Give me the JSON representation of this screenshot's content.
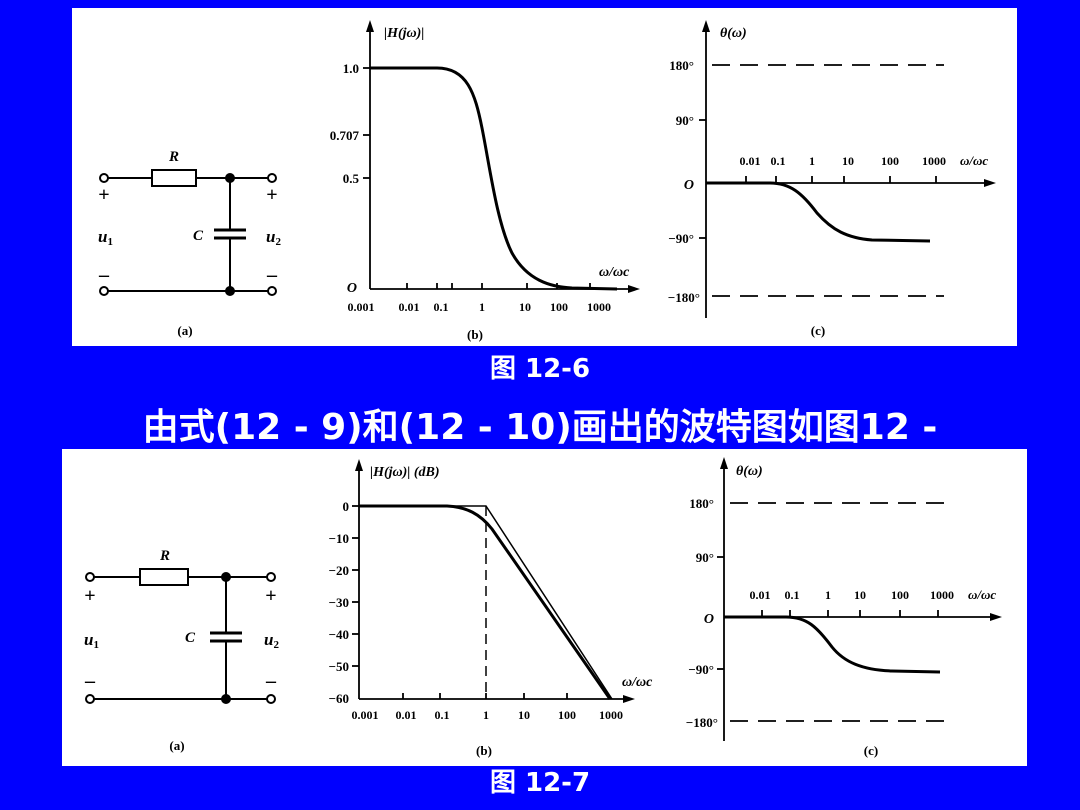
{
  "caption_top": "图 12-6",
  "heading": "由式(12 - 9)和(12 - 10)画出的波特图如图12 -",
  "caption_bottom": "图 12-7",
  "circuit": {
    "resistor": "R",
    "capacitor": "C",
    "input_voltage": "u",
    "input_sub": "1",
    "output_voltage": "u",
    "output_sub": "2",
    "plus": "+",
    "minus": "–"
  },
  "sublabels": {
    "a": "(a)",
    "b": "(b)",
    "c": "(c)"
  },
  "fig6": {
    "magnitude": {
      "ylabel": "|H(jω)|",
      "origin": "O",
      "yticks": [
        "1.0",
        "0.707",
        "0.5"
      ],
      "xlabel": "ω/ωc",
      "xticks": [
        "0.001",
        "0.01",
        "0.1",
        "1",
        "10",
        "100",
        "1000"
      ]
    },
    "phase": {
      "ylabel": "θ(ω)",
      "origin": "O",
      "yticks": [
        "180°",
        "90°",
        "−90°",
        "−180°"
      ],
      "xlabel": "ω/ωc",
      "xticks": [
        "0.01",
        "0.1",
        "1",
        "10",
        "100",
        "1000"
      ]
    }
  },
  "fig7": {
    "magnitude": {
      "ylabel": "|H(jω)| (dB)",
      "yticks": [
        "0",
        "−10",
        "−20",
        "−30",
        "−40",
        "−50",
        "−60"
      ],
      "xlabel": "ω/ωc",
      "xticks": [
        "0.001",
        "0.01",
        "0.1",
        "1",
        "10",
        "100",
        "1000"
      ]
    },
    "phase": {
      "ylabel": "θ(ω)",
      "origin": "O",
      "yticks": [
        "180°",
        "90°",
        "−90°",
        "−180°"
      ],
      "xlabel": "ω/ωc",
      "xticks": [
        "0.01",
        "0.1",
        "1",
        "10",
        "100",
        "1000"
      ]
    }
  },
  "colors": {
    "background": "#0000ff",
    "panel": "#ffffff",
    "ink": "#000000",
    "caption": "#ffffff"
  }
}
